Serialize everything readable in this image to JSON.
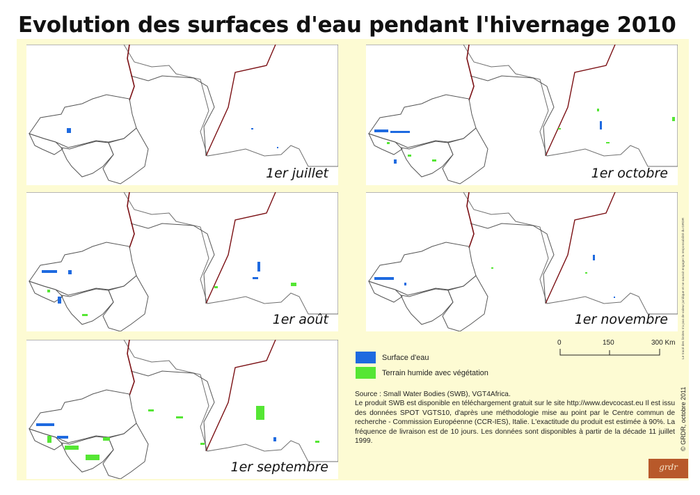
{
  "title": "Evolution des surfaces d'eau pendant l'hivernage 2010",
  "panels": [
    {
      "label": "1er juillet"
    },
    {
      "label": "1er octobre"
    },
    {
      "label": "1er août"
    },
    {
      "label": "1er novembre"
    },
    {
      "label": "1er septembre"
    }
  ],
  "legend": {
    "water": {
      "label": "Surface d'eau",
      "color": "#1e6ae0"
    },
    "wetland": {
      "label": "Terrain humide avec végétation",
      "color": "#55e634"
    }
  },
  "scale": {
    "ticks": [
      "0",
      "150",
      "300 Km"
    ]
  },
  "source": {
    "line1": "Source : Small Water Bodies (SWB), VGT4Africa.",
    "text": "Le produit SWB est disponible en téléchargement gratuit sur le site http://www.devcocast.eu Il est issu des données SPOT VGTS10, d'après une méthodologie mise au point par le Centre commun de recherche - Commission Européenne (CCR-IES), Italie. L'exactitude du produit est estimée à 90%. La fréquence de livraison est de 10 jours. Les données sont disponibles à partir de la décade 11 juillet 1999."
  },
  "credit": "© GRDR, octobre 2011",
  "disclaimer": "Le tracé des limites n'a pas de valeur juridique et ne saurait engager la responsabilité du GRDR",
  "logo_text": "grdr",
  "colors": {
    "frame": "#fdfbd3",
    "border": "#7b1014",
    "outline": "#555555"
  }
}
